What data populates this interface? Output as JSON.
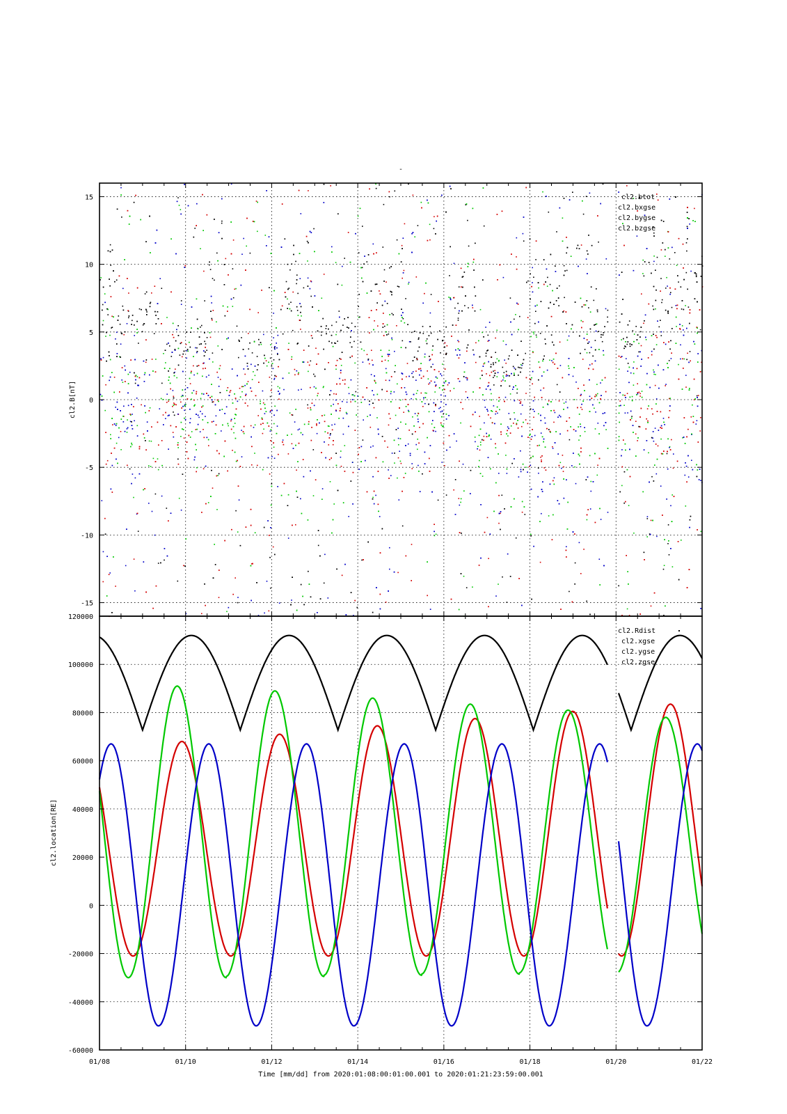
{
  "figure": {
    "title": "-",
    "xlabel": "Time [mm/dd]  from 2020:01:08:00:01:00.001  to  2020:01:21:23:59:00.001",
    "x_ticks": [
      "01/08",
      "01/10",
      "01/12",
      "01/14",
      "01/16",
      "01/18",
      "01/20",
      "01/22"
    ]
  },
  "colors": {
    "black": "#000000",
    "red": "#d40000",
    "green": "#00c800",
    "blue": "#0000c8"
  },
  "chart_data": [
    {
      "type": "scatter",
      "ylabel": "cl2.B[nT]",
      "xlim_days": [
        0,
        14
      ],
      "ylim": [
        -16,
        16
      ],
      "y_ticks": [
        -15,
        -10,
        -5,
        0,
        5,
        10,
        15
      ],
      "grid": true,
      "legend_position": "top-right",
      "series": [
        {
          "name": "cl2.btot",
          "color": "#000000"
        },
        {
          "name": "cl2.bxgse",
          "color": "#d40000"
        },
        {
          "name": "cl2.bygse",
          "color": "#00c800"
        },
        {
          "name": "cl2.bzgse",
          "color": "#0000c8"
        }
      ]
    },
    {
      "type": "line",
      "ylabel": "cl2.location[RE]",
      "xlim_days": [
        0,
        14
      ],
      "ylim": [
        -60000,
        120000
      ],
      "y_ticks": [
        -60000,
        -40000,
        -20000,
        0,
        20000,
        40000,
        60000,
        80000,
        100000,
        120000
      ],
      "grid": true,
      "legend_position": "top-right",
      "data_gap_days": [
        11.8,
        12.05
      ],
      "orbit_period_days": 2.27,
      "series": [
        {
          "name": "cl2.Rdist",
          "color": "#000000",
          "mean": 72750,
          "amplitude": 39250,
          "phase_day": 1.0,
          "shape": "cusp"
        },
        {
          "name": "cl2.xgse",
          "color": "#d40000",
          "start": 57000,
          "min": -21000,
          "min_day": 0.78,
          "peaks": [
            [
              1.95,
              68000
            ],
            [
              4.2,
              71000
            ],
            [
              6.45,
              74500
            ],
            [
              8.7,
              77500
            ],
            [
              10.95,
              80500
            ],
            [
              13.2,
              83500
            ]
          ]
        },
        {
          "name": "cl2.ygse",
          "color": "#00c800",
          "start": 55000,
          "peaks": [
            [
              1.6,
              91000
            ],
            [
              3.85,
              89000
            ],
            [
              6.1,
              86000
            ],
            [
              8.35,
              83500
            ],
            [
              10.6,
              81000
            ],
            [
              12.85,
              78000
            ]
          ],
          "mins": [
            [
              0.67,
              -30000
            ],
            [
              2.92,
              -29500
            ],
            [
              5.17,
              -29000
            ],
            [
              7.42,
              -28500
            ],
            [
              9.67,
              -28000
            ]
          ]
        },
        {
          "name": "cl2.zgse",
          "color": "#0000c8",
          "max": 67000,
          "min": -50000,
          "max_day": 0.27,
          "min_day": 1.37
        }
      ]
    }
  ]
}
